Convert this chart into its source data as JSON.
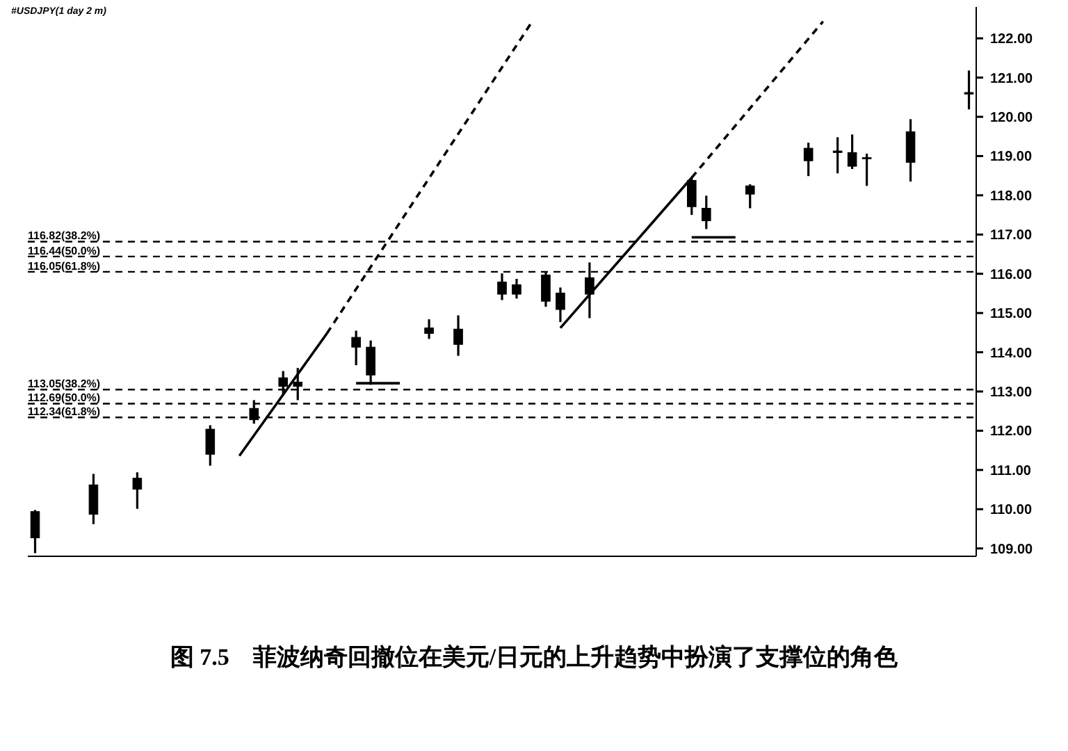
{
  "chart_data": {
    "type": "candlestick",
    "title": "#USDJPY(1 day 2 m)",
    "annotations": [
      "图 7.5　菲波纳奇回撤位在美元/日元的上升趋势中扮演了支撑位的角色"
    ],
    "categories": [
      null,
      null,
      null,
      null,
      null,
      null,
      null,
      null,
      null,
      null,
      null,
      null,
      null,
      null,
      null,
      null,
      null,
      null,
      null,
      null,
      null,
      null,
      null,
      null,
      null,
      null,
      null,
      null,
      null,
      null,
      null,
      null,
      null,
      null,
      null,
      null,
      null,
      null,
      null,
      null,
      null,
      null,
      null,
      null,
      null,
      null,
      null,
      null,
      null,
      null,
      null,
      null,
      null,
      null,
      null,
      null,
      null,
      null,
      null,
      null,
      null,
      null,
      null,
      null,
      null
    ],
    "ohlc": [
      [
        109.27,
        109.98,
        108.88,
        109.94
      ],
      null,
      null,
      null,
      [
        109.87,
        110.9,
        109.62,
        110.62
      ],
      null,
      null,
      [
        110.51,
        110.94,
        110.01,
        110.79
      ],
      null,
      null,
      null,
      null,
      [
        111.4,
        112.14,
        111.11,
        112.04
      ],
      null,
      null,
      [
        112.28,
        112.78,
        112.18,
        112.57
      ],
      null,
      [
        113.13,
        113.52,
        112.92,
        113.35
      ],
      [
        113.13,
        113.6,
        112.78,
        113.24
      ],
      null,
      null,
      null,
      [
        114.13,
        114.55,
        113.67,
        114.38
      ],
      [
        113.42,
        114.3,
        113.17,
        114.13
      ],
      null,
      null,
      null,
      [
        114.48,
        114.84,
        114.34,
        114.62
      ],
      null,
      [
        114.2,
        114.94,
        113.91,
        114.59
      ],
      null,
      null,
      [
        115.48,
        116.01,
        115.33,
        115.79
      ],
      [
        115.48,
        115.87,
        115.37,
        115.72
      ],
      null,
      [
        115.3,
        116.04,
        115.16,
        115.97
      ],
      [
        115.09,
        115.65,
        114.77,
        115.51
      ],
      null,
      [
        115.48,
        116.29,
        114.87,
        115.9
      ],
      null,
      null,
      null,
      null,
      null,
      null,
      [
        117.71,
        118.45,
        117.5,
        118.38
      ],
      [
        117.35,
        117.99,
        117.14,
        117.67
      ],
      null,
      null,
      [
        118.03,
        118.28,
        117.67,
        118.24
      ],
      null,
      null,
      null,
      [
        118.88,
        119.34,
        118.49,
        119.2
      ],
      null,
      [
        119.09,
        119.48,
        118.56,
        119.13
      ],
      [
        118.74,
        119.55,
        118.67,
        119.09
      ],
      [
        118.93,
        119.06,
        118.24,
        118.96
      ],
      null,
      null,
      [
        118.84,
        119.94,
        118.35,
        119.62
      ],
      null,
      null,
      null,
      [
        120.58,
        121.18,
        120.19,
        120.62
      ]
    ],
    "series": [
      {
        "type": "line",
        "color": "#000000",
        "line_style": "solid",
        "values": [
          null,
          null,
          null,
          null,
          null,
          null,
          null,
          null,
          null,
          null,
          null,
          null,
          null,
          null,
          111.36,
          null,
          null,
          null,
          null,
          null,
          114.48,
          null,
          null,
          null,
          null,
          null,
          null,
          null,
          null,
          null,
          null,
          null,
          null,
          null,
          null,
          null,
          null,
          null,
          null,
          null,
          null,
          null,
          null,
          null,
          null,
          null,
          null,
          null,
          null,
          null,
          null,
          null,
          null,
          null,
          null,
          null,
          null,
          null,
          null,
          null,
          null,
          null,
          null,
          null,
          null
        ]
      },
      {
        "type": "line",
        "color": "#000000",
        "line_style": "dashed",
        "values": [
          null,
          null,
          null,
          null,
          null,
          null,
          null,
          null,
          null,
          null,
          null,
          null,
          null,
          null,
          null,
          null,
          null,
          null,
          null,
          null,
          114.48,
          null,
          null,
          null,
          null,
          null,
          null,
          null,
          null,
          null,
          null,
          null,
          null,
          null,
          122.39,
          null,
          null,
          null,
          null,
          null,
          null,
          null,
          null,
          null,
          null,
          null,
          null,
          null,
          null,
          null,
          null,
          null,
          null,
          null,
          null,
          null,
          null,
          null,
          null,
          null,
          null,
          null,
          null,
          null,
          null
        ]
      },
      {
        "type": "line",
        "color": "#000000",
        "line_style": "solid",
        "values": [
          null,
          null,
          null,
          null,
          null,
          null,
          null,
          null,
          null,
          null,
          null,
          null,
          null,
          null,
          null,
          null,
          null,
          null,
          null,
          null,
          null,
          null,
          null,
          null,
          null,
          null,
          null,
          null,
          null,
          null,
          null,
          null,
          null,
          null,
          null,
          null,
          114.62,
          null,
          null,
          null,
          null,
          null,
          null,
          null,
          null,
          118.45,
          null,
          null,
          null,
          null,
          null,
          null,
          null,
          null,
          null,
          null,
          null,
          null,
          null,
          null,
          null,
          null,
          null,
          null,
          null
        ]
      },
      {
        "type": "line",
        "color": "#000000",
        "line_style": "dashed",
        "values": [
          null,
          null,
          null,
          null,
          null,
          null,
          null,
          null,
          null,
          null,
          null,
          null,
          null,
          null,
          null,
          null,
          null,
          null,
          null,
          null,
          null,
          null,
          null,
          null,
          null,
          null,
          null,
          null,
          null,
          null,
          null,
          null,
          null,
          null,
          null,
          null,
          null,
          null,
          null,
          null,
          null,
          null,
          null,
          null,
          null,
          118.45,
          null,
          null,
          null,
          null,
          null,
          null,
          null,
          null,
          122.43,
          null,
          null,
          null,
          null,
          null,
          null,
          null,
          null,
          null,
          null
        ]
      },
      {
        "type": "line",
        "color": "#000000",
        "line_style": "solid",
        "values": [
          null,
          null,
          null,
          null,
          null,
          null,
          null,
          null,
          null,
          null,
          null,
          null,
          null,
          null,
          null,
          null,
          null,
          null,
          null,
          null,
          null,
          null,
          113.21,
          null,
          null,
          113.21,
          null,
          null,
          null,
          null,
          null,
          null,
          null,
          null,
          null,
          null,
          null,
          null,
          null,
          null,
          null,
          null,
          null,
          null,
          null,
          null,
          null,
          null,
          null,
          null,
          null,
          null,
          null,
          null,
          null,
          null,
          null,
          null,
          null,
          null,
          null,
          null,
          null,
          null,
          null
        ]
      },
      {
        "type": "line",
        "color": "#000000",
        "line_style": "solid",
        "values": [
          null,
          null,
          null,
          null,
          null,
          null,
          null,
          null,
          null,
          null,
          null,
          null,
          null,
          null,
          null,
          null,
          null,
          null,
          null,
          null,
          null,
          null,
          null,
          null,
          null,
          null,
          null,
          null,
          null,
          null,
          null,
          null,
          null,
          null,
          null,
          null,
          null,
          null,
          null,
          null,
          null,
          null,
          null,
          null,
          null,
          116.93,
          null,
          null,
          116.93,
          null,
          null,
          null,
          null,
          null,
          null,
          null,
          null,
          null,
          null,
          null,
          null,
          null,
          null,
          null,
          null
        ]
      }
    ],
    "ref_lines": [
      {
        "axis": "y",
        "value": 116.82,
        "label": "116.82(38.2%)",
        "line_style": "dashed",
        "color": "#000000"
      },
      {
        "axis": "y",
        "value": 116.44,
        "label": "116.44(50.0%)",
        "line_style": "dashed",
        "color": "#000000"
      },
      {
        "axis": "y",
        "value": 116.05,
        "label": "116.05(61.8%)",
        "line_style": "dashed",
        "color": "#000000"
      },
      {
        "axis": "y",
        "value": 113.05,
        "label": "113.05(38.2%)",
        "line_style": "dashed",
        "color": "#000000"
      },
      {
        "axis": "y",
        "value": 112.69,
        "label": "112.69(50.0%)",
        "line_style": "dashed",
        "color": "#000000"
      },
      {
        "axis": "y",
        "value": 112.34,
        "label": "112.34(61.8%)",
        "line_style": "dashed",
        "color": "#000000"
      }
    ],
    "ylim": [
      108.8,
      122.8
    ],
    "yticks": [
      {
        "value": 109,
        "label": "109.00"
      },
      {
        "value": 110,
        "label": "110.00"
      },
      {
        "value": 111,
        "label": "111.00"
      },
      {
        "value": 112,
        "label": "112.00"
      },
      {
        "value": 113,
        "label": "113.00"
      },
      {
        "value": 114,
        "label": "114.00"
      },
      {
        "value": 115,
        "label": "115.00"
      },
      {
        "value": 116,
        "label": "116.00"
      },
      {
        "value": 117,
        "label": "117.00"
      },
      {
        "value": 118,
        "label": "118.00"
      },
      {
        "value": 119,
        "label": "119.00"
      },
      {
        "value": 120,
        "label": "120.00"
      },
      {
        "value": 121,
        "label": "121.00"
      },
      {
        "value": 122,
        "label": "122.00"
      }
    ],
    "tick_labels": "y"
  }
}
